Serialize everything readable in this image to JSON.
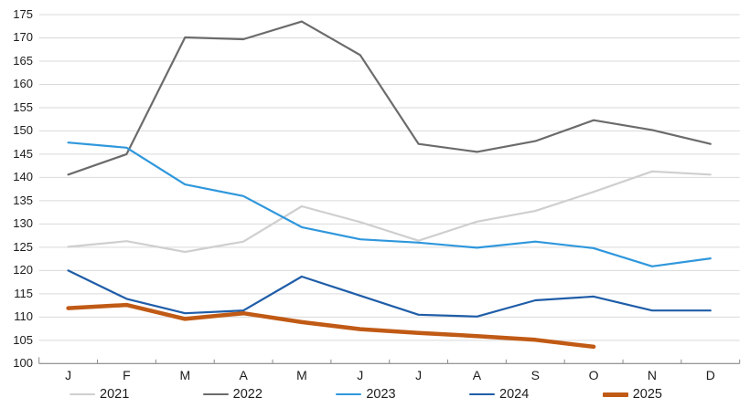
{
  "chart_data": {
    "type": "line",
    "title": "",
    "xlabel": "",
    "ylabel": "",
    "categories": [
      "J",
      "F",
      "M",
      "A",
      "M",
      "J",
      "J",
      "A",
      "S",
      "O",
      "N",
      "D"
    ],
    "ylim": [
      100,
      175
    ],
    "y_ticks": [
      100,
      105,
      110,
      115,
      120,
      125,
      130,
      135,
      140,
      145,
      150,
      155,
      160,
      165,
      170,
      175
    ],
    "grid": "horizontal",
    "legend_position": "bottom",
    "series": [
      {
        "name": "2021",
        "color": "#cfcfcf",
        "line_width": 2.2,
        "values": [
          125.1,
          126.3,
          124.0,
          126.2,
          133.8,
          130.4,
          126.4,
          130.5,
          132.8,
          136.9,
          141.3,
          140.6
        ]
      },
      {
        "name": "2022",
        "color": "#6b6b6b",
        "line_width": 2.2,
        "values": [
          140.6,
          145.0,
          170.1,
          169.7,
          173.5,
          166.3,
          147.2,
          145.5,
          147.8,
          152.3,
          150.2,
          147.2
        ]
      },
      {
        "name": "2023",
        "color": "#2f97dc",
        "line_width": 2.2,
        "values": [
          147.5,
          146.4,
          138.5,
          136.0,
          129.3,
          126.7,
          126.0,
          124.9,
          126.2,
          124.8,
          120.9,
          122.6
        ]
      },
      {
        "name": "2024",
        "color": "#1f5da8",
        "line_width": 2.2,
        "values": [
          120.0,
          113.9,
          110.8,
          111.4,
          118.7,
          114.6,
          110.5,
          110.1,
          113.6,
          114.4,
          111.4,
          111.4
        ]
      },
      {
        "name": "2025",
        "color": "#c05a15",
        "line_width": 4.5,
        "values": [
          111.9,
          112.6,
          109.6,
          110.8,
          108.9,
          107.4,
          106.6,
          105.9,
          105.1,
          103.6
        ]
      }
    ],
    "colors": {
      "gridline": "#d9d9d9",
      "axis_line": "#8c8c8c",
      "tick_mark": "#8c8c8c",
      "label_text": "#1c1c1c"
    }
  }
}
